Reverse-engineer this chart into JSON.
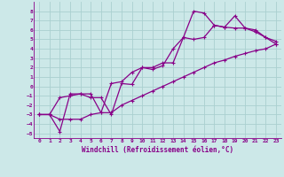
{
  "xlabel": "Windchill (Refroidissement éolien,°C)",
  "background_color": "#cce8e8",
  "grid_color": "#aad0d0",
  "line_color": "#880088",
  "xlim": [
    -0.5,
    23.5
  ],
  "ylim": [
    -5.5,
    9.0
  ],
  "xticks": [
    0,
    1,
    2,
    3,
    4,
    5,
    6,
    7,
    8,
    9,
    10,
    11,
    12,
    13,
    14,
    15,
    16,
    17,
    18,
    19,
    20,
    21,
    22,
    23
  ],
  "yticks": [
    -5,
    -4,
    -3,
    -2,
    -1,
    0,
    1,
    2,
    3,
    4,
    5,
    6,
    7,
    8
  ],
  "line1_x": [
    0,
    1,
    2,
    3,
    4,
    5,
    6,
    7,
    8,
    9,
    10,
    11,
    12,
    13,
    14,
    15,
    16,
    17,
    18,
    19,
    20,
    21,
    22,
    23
  ],
  "line1_y": [
    -3.0,
    -3.0,
    -4.8,
    -0.8,
    -0.8,
    -1.2,
    -1.2,
    -3.0,
    0.3,
    0.2,
    2.0,
    2.0,
    2.5,
    2.5,
    5.2,
    8.0,
    7.8,
    6.5,
    6.3,
    7.5,
    6.2,
    6.0,
    5.2,
    4.8
  ],
  "line2_x": [
    0,
    1,
    2,
    3,
    4,
    5,
    6,
    7,
    8,
    9,
    10,
    11,
    12,
    13,
    14,
    15,
    16,
    17,
    18,
    19,
    20,
    21,
    22,
    23
  ],
  "line2_y": [
    -3.0,
    -3.0,
    -1.2,
    -1.0,
    -0.8,
    -0.8,
    -2.8,
    0.3,
    0.5,
    1.5,
    2.0,
    1.8,
    2.2,
    4.0,
    5.2,
    5.0,
    5.2,
    6.5,
    6.3,
    6.2,
    6.2,
    5.8,
    5.2,
    4.5
  ],
  "line3_x": [
    0,
    1,
    2,
    3,
    4,
    5,
    6,
    7,
    8,
    9,
    10,
    11,
    12,
    13,
    14,
    15,
    16,
    17,
    18,
    19,
    20,
    21,
    22,
    23
  ],
  "line3_y": [
    -3.0,
    -3.0,
    -3.5,
    -3.5,
    -3.5,
    -3.0,
    -2.8,
    -2.8,
    -2.0,
    -1.5,
    -1.0,
    -0.5,
    0.0,
    0.5,
    1.0,
    1.5,
    2.0,
    2.5,
    2.8,
    3.2,
    3.5,
    3.8,
    4.0,
    4.5
  ]
}
